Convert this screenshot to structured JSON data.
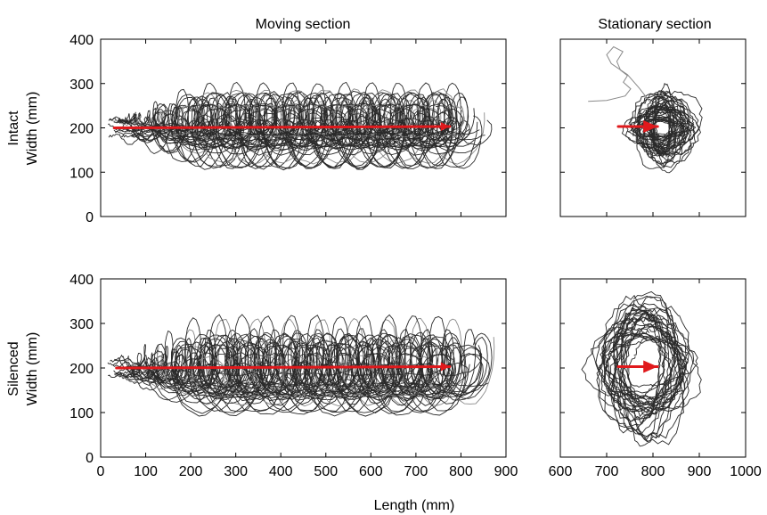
{
  "chart_data": {
    "type": "line",
    "column_titles": [
      "Moving section",
      "Stationary section"
    ],
    "xlabel": "Length (mm)",
    "row_labels": [
      {
        "condition": "Intact",
        "ylabel": "Width (mm)"
      },
      {
        "condition": "Silenced",
        "ylabel": "Width (mm)"
      }
    ],
    "moving_axis": {
      "xlim": [
        0,
        900
      ],
      "ylim": [
        0,
        400
      ],
      "xticks": [
        0,
        100,
        200,
        300,
        400,
        500,
        600,
        700,
        800,
        900
      ],
      "yticks": [
        0,
        100,
        200,
        300,
        400
      ]
    },
    "stationary_axis": {
      "xlim": [
        600,
        1000
      ],
      "ylim": [
        0,
        400
      ],
      "xticks": [
        600,
        700,
        800,
        900,
        1000
      ],
      "yticks": [
        0,
        100,
        200,
        300,
        400
      ]
    },
    "panels": [
      {
        "name": "intact-moving",
        "mean_trajectory": {
          "x": [
            30,
            775
          ],
          "y": [
            200,
            203
          ]
        },
        "centerline_y": 200,
        "x_range": [
          15,
          860
        ],
        "amplitude_range": [
          15,
          95
        ],
        "cycle_x": 55,
        "trace_count": 22,
        "seed": 11
      },
      {
        "name": "intact-stationary",
        "mean_trajectory": {
          "x": [
            725,
            810
          ],
          "y": [
            203,
            203
          ]
        },
        "center": [
          820,
          200
        ],
        "radius_x": [
          15,
          70
        ],
        "radius_y": [
          15,
          85
        ],
        "trace_count": 40,
        "seed": 23,
        "excursion": {
          "x": [
            660,
            700,
            740,
            752,
            736,
            745,
            730,
            722,
            735,
            715,
            700,
            710,
            745,
            770,
            800
          ],
          "y": [
            260,
            262,
            272,
            288,
            303,
            318,
            330,
            350,
            372,
            383,
            365,
            345,
            320,
            290,
            250
          ]
        }
      },
      {
        "name": "silenced-moving",
        "mean_trajectory": {
          "x": [
            35,
            775
          ],
          "y": [
            200,
            203
          ]
        },
        "centerline_y": 200,
        "x_range": [
          15,
          860
        ],
        "amplitude_range": [
          20,
          100
        ],
        "cycle_x": 60,
        "trace_count": 22,
        "seed": 37
      },
      {
        "name": "silenced-stationary",
        "mean_trajectory": {
          "x": [
            725,
            810
          ],
          "y": [
            203,
            203
          ]
        },
        "center": [
          785,
          205
        ],
        "radius_x": [
          35,
          105
        ],
        "radius_y": [
          50,
          155
        ],
        "trace_count": 32,
        "seed": 51
      }
    ],
    "colors": {
      "trace": "#2a2a2a",
      "trace_light": "#8a8a8a",
      "mean": "#e0191c",
      "axis": "#000000"
    },
    "grid": false,
    "legend": "none"
  }
}
